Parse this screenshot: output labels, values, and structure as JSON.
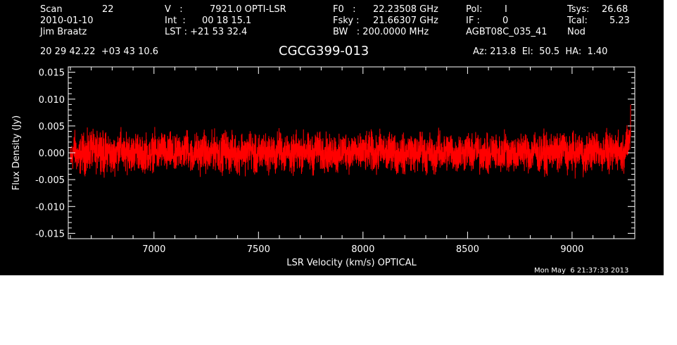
{
  "header": {
    "row1": {
      "scan_label": "Scan",
      "scan_value": "22",
      "v_label": "V   :",
      "v_value": "7921.0 OPTI-LSR",
      "f0_label": "F0   :",
      "f0_value": "22.23508 GHz",
      "pol_label": "Pol:",
      "pol_value": "I",
      "tsys_label": "Tsys:",
      "tsys_value": "26.68"
    },
    "row2": {
      "date": "2010-01-10",
      "int_label": "Int  :",
      "int_value": "00 18 15.1",
      "fsky_label": "Fsky :",
      "fsky_value": "21.66307 GHz",
      "if_label": "IF :",
      "if_value": "0",
      "tcal_label": "Tcal:",
      "tcal_value": "5.23"
    },
    "row3": {
      "observer": "Jim Braatz",
      "lst": "LST : +21 53 32.4",
      "bw": "BW   : 200.0000 MHz",
      "project": "AGBT08C_035_41",
      "mode": "Nod"
    },
    "coords": "20 29 42.22  +03 43 10.6",
    "source": "CGCG399-013",
    "az_el_ha": "Az: 213.8  El:  50.5  HA:  1.40",
    "timestamp": "Mon May  6 21:37:33 2013"
  },
  "colors": {
    "background": "#000000",
    "foreground": "#ffffff",
    "trace": "#ff0000"
  },
  "chart_data": {
    "type": "line",
    "title": "CGCG399-013",
    "xlabel": "LSR Velocity (km/s) OPTICAL",
    "ylabel": "Flux Density (Jy)",
    "xlim": [
      6590,
      9300
    ],
    "ylim": [
      -0.016,
      0.016
    ],
    "xticks": [
      7000,
      7500,
      8000,
      8500,
      9000
    ],
    "xtick_labels": [
      "7000",
      "7500",
      "8000",
      "8500",
      "9000"
    ],
    "yticks": [
      -0.015,
      -0.01,
      -0.005,
      0.0,
      0.005,
      0.01,
      0.015
    ],
    "ytick_labels": [
      "-0.015",
      "-0.010",
      "-0.005",
      "0.000",
      "0.005",
      "0.010",
      "0.015"
    ],
    "series": [
      {
        "color": "#ff0000",
        "x": [
          6600,
          6620,
          6640,
          6660,
          6680,
          6700,
          6720,
          6740,
          6760,
          6780,
          6800,
          6820,
          6840,
          6860,
          6880,
          6900,
          6920,
          6940,
          6960,
          6980,
          7000,
          7020,
          7040,
          7060,
          7080,
          7100,
          7120,
          7140,
          7160,
          7180,
          7200,
          7220,
          7240,
          7260,
          7280,
          7300,
          7320,
          7340,
          7360,
          7380,
          7400,
          7420,
          7440,
          7460,
          7480,
          7500,
          7520,
          7540,
          7560,
          7580,
          7600,
          7620,
          7640,
          7660,
          7680,
          7700,
          7720,
          7740,
          7760,
          7780,
          7800,
          7820,
          7840,
          7860,
          7880,
          7900,
          7920,
          7940,
          7960,
          7980,
          8000,
          8020,
          8040,
          8060,
          8080,
          8100,
          8120,
          8140,
          8160,
          8180,
          8200,
          8220,
          8240,
          8260,
          8280,
          8300,
          8320,
          8340,
          8360,
          8380,
          8400,
          8420,
          8440,
          8460,
          8480,
          8500,
          8520,
          8540,
          8560,
          8580,
          8600,
          8620,
          8640,
          8660,
          8680,
          8700,
          8720,
          8740,
          8760,
          8780,
          8800,
          8820,
          8840,
          8860,
          8880,
          8900,
          8920,
          8940,
          8960,
          8980,
          9000,
          9020,
          9040,
          9060,
          9080,
          9100,
          9120,
          9140,
          9160,
          9180,
          9200,
          9220,
          9240,
          9260,
          9280
        ],
        "y": [
          -0.004,
          0.002,
          -0.003,
          0.001,
          -0.002,
          0.003,
          -0.001,
          0.004,
          -0.002,
          0.002,
          -0.003,
          0.001,
          0.003,
          -0.002,
          0.002,
          -0.001,
          0.003,
          -0.003,
          0.001,
          -0.002,
          0.002,
          -0.001,
          0.003,
          -0.002,
          0.001,
          -0.003,
          0.002,
          0.0,
          0.003,
          -0.002,
          0.001,
          -0.001,
          0.002,
          -0.003,
          0.001,
          0.002,
          -0.002,
          0.003,
          -0.001,
          0.001,
          -0.002,
          0.002,
          -0.001,
          0.003,
          -0.002,
          -0.003,
          0.002,
          -0.001,
          0.001,
          -0.002,
          0.003,
          -0.001,
          0.002,
          -0.003,
          0.001,
          -0.001,
          0.002,
          0.0,
          -0.002,
          0.003,
          -0.001,
          0.001,
          -0.002,
          0.002,
          -0.003,
          0.001,
          0.002,
          -0.001,
          0.003,
          -0.002,
          0.001,
          -0.001,
          0.002,
          -0.003,
          0.002,
          0.0,
          -0.001,
          0.003,
          -0.002,
          0.001,
          -0.002,
          0.002,
          0.0,
          -0.001,
          0.003,
          -0.002,
          0.001,
          -0.003,
          0.002,
          -0.001,
          0.001,
          0.002,
          -0.002,
          0.001,
          -0.001,
          0.003,
          -0.002,
          0.002,
          -0.001,
          0.001,
          -0.003,
          0.002,
          0.0,
          -0.002,
          0.003,
          -0.001,
          0.001,
          -0.002,
          0.002,
          0.001,
          -0.001,
          0.003,
          -0.002,
          0.001,
          -0.002,
          0.002,
          0.0,
          -0.001,
          0.003,
          -0.002,
          0.001,
          -0.001,
          0.002,
          -0.003,
          0.002,
          0.0,
          0.003,
          -0.001,
          0.002,
          -0.002,
          0.001,
          0.002,
          -0.001,
          0.004,
          0.009
        ],
        "envelope": [
          0.004,
          0.005,
          0.005,
          0.005,
          0.006,
          0.005,
          0.005,
          0.005,
          0.006,
          0.005,
          0.005,
          0.005,
          0.005,
          0.005,
          0.005,
          0.005,
          0.005,
          0.005,
          0.005,
          0.005,
          0.005,
          0.005,
          0.005,
          0.005,
          0.005,
          0.005,
          0.005,
          0.005,
          0.005,
          0.005,
          0.005,
          0.005,
          0.005,
          0.005,
          0.005,
          0.005,
          0.005,
          0.005,
          0.005,
          0.005,
          0.005,
          0.005,
          0.005,
          0.005,
          0.005,
          0.006,
          0.005,
          0.005,
          0.005,
          0.005,
          0.005,
          0.005,
          0.005,
          0.005,
          0.005,
          0.005,
          0.005,
          0.005,
          0.005,
          0.005,
          0.005,
          0.005,
          0.005,
          0.005,
          0.005,
          0.005,
          0.005,
          0.005,
          0.005,
          0.005,
          0.005,
          0.005,
          0.005,
          0.005,
          0.005,
          0.005,
          0.005,
          0.005,
          0.005,
          0.005,
          0.005,
          0.005,
          0.005,
          0.005,
          0.005,
          0.005,
          0.005,
          0.005,
          0.005,
          0.005,
          0.005,
          0.005,
          0.005,
          0.005,
          0.005,
          0.005,
          0.005,
          0.005,
          0.005,
          0.005,
          0.005,
          0.005,
          0.005,
          0.005,
          0.005,
          0.005,
          0.005,
          0.005,
          0.005,
          0.005,
          0.005,
          0.005,
          0.005,
          0.005,
          0.005,
          0.005,
          0.005,
          0.005,
          0.005,
          0.005,
          0.005,
          0.005,
          0.005,
          0.005,
          0.005,
          0.005,
          0.005,
          0.005,
          0.005,
          0.005,
          0.005,
          0.005,
          0.005,
          0.005,
          0.004
        ]
      }
    ],
    "grid": false,
    "legend": "none"
  }
}
